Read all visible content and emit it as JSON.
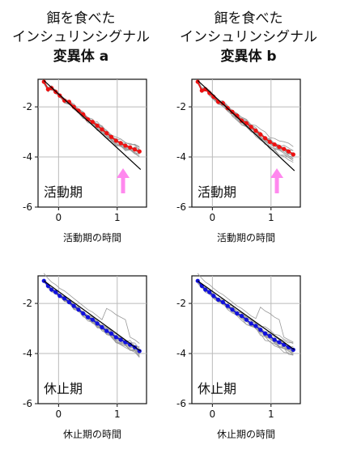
{
  "columns": [
    {
      "title_lines": [
        "餌を食べた",
        "インシュリンシグナル"
      ],
      "title_bold": "変異体 a"
    },
    {
      "title_lines": [
        "餌を食べた",
        "インシュリンシグナル"
      ],
      "title_bold": "変異体 b"
    }
  ],
  "chart_data": [
    {
      "type": "scatter",
      "panel": "top-left",
      "label": "活動期",
      "xlabel": "活動期の時間",
      "xlim": [
        -0.35,
        1.5
      ],
      "ylim": [
        -6,
        -0.9
      ],
      "xticks": [
        "0",
        "1"
      ],
      "yticks": [
        "-2",
        "-4",
        "-6"
      ],
      "grid": true,
      "mean_color": "#ee1111",
      "arrow": {
        "x": 1.1,
        "y_tail": -5.45,
        "y_head": -4.45,
        "color": "#ff88ee"
      },
      "fit": {
        "x": [
          -0.25,
          1.4
        ],
        "y": [
          -0.95,
          -4.5
        ]
      },
      "series": [
        {
          "x": [
            -0.25,
            -0.18,
            -0.12,
            -0.05,
            0.02,
            0.1,
            0.18,
            0.26,
            0.34,
            0.42,
            0.5,
            0.58,
            0.66,
            0.74,
            0.82,
            0.9,
            0.98,
            1.06,
            1.14,
            1.22,
            1.3,
            1.38
          ],
          "y": [
            -1.0,
            -1.3,
            -1.25,
            -1.4,
            -1.55,
            -1.75,
            -1.8,
            -2.0,
            -2.15,
            -2.3,
            -2.5,
            -2.6,
            -2.75,
            -2.9,
            -3.05,
            -3.2,
            -3.35,
            -3.45,
            -3.55,
            -3.62,
            -3.7,
            -3.78
          ]
        }
      ]
    },
    {
      "type": "scatter",
      "panel": "top-right",
      "label": "活動期",
      "xlabel": "活動期の時間",
      "xlim": [
        -0.35,
        1.5
      ],
      "ylim": [
        -6,
        -0.9
      ],
      "xticks": [
        "0",
        "1"
      ],
      "yticks": [
        "-2",
        "-4",
        "-6"
      ],
      "grid": true,
      "mean_color": "#ee1111",
      "arrow": {
        "x": 1.1,
        "y_tail": -5.45,
        "y_head": -4.45,
        "color": "#ff88ee"
      },
      "fit": {
        "x": [
          -0.25,
          1.4
        ],
        "y": [
          -0.95,
          -4.55
        ]
      },
      "series": [
        {
          "x": [
            -0.25,
            -0.18,
            -0.12,
            -0.05,
            0.02,
            0.1,
            0.18,
            0.26,
            0.34,
            0.42,
            0.5,
            0.58,
            0.66,
            0.74,
            0.82,
            0.9,
            0.98,
            1.06,
            1.14,
            1.22,
            1.3,
            1.38
          ],
          "y": [
            -1.0,
            -1.35,
            -1.3,
            -1.45,
            -1.6,
            -1.8,
            -1.85,
            -2.05,
            -2.2,
            -2.35,
            -2.55,
            -2.65,
            -2.8,
            -2.95,
            -3.1,
            -3.25,
            -3.4,
            -3.5,
            -3.6,
            -3.68,
            -3.78,
            -3.9
          ]
        }
      ]
    },
    {
      "type": "scatter",
      "panel": "bottom-left",
      "label": "休止期",
      "xlabel": "休止期の時間",
      "xlim": [
        -0.35,
        1.5
      ],
      "ylim": [
        -6,
        -0.9
      ],
      "xticks": [
        "0",
        "1"
      ],
      "yticks": [
        "-2",
        "-4",
        "-6"
      ],
      "grid": true,
      "mean_color": "#1111dd",
      "fit": {
        "x": [
          -0.25,
          1.4
        ],
        "y": [
          -1.1,
          -3.9
        ]
      },
      "series": [
        {
          "x": [
            -0.25,
            -0.18,
            -0.12,
            -0.05,
            0.02,
            0.1,
            0.18,
            0.26,
            0.34,
            0.42,
            0.5,
            0.58,
            0.66,
            0.74,
            0.82,
            0.9,
            0.98,
            1.06,
            1.14,
            1.22,
            1.3,
            1.38
          ],
          "y": [
            -1.1,
            -1.3,
            -1.45,
            -1.55,
            -1.7,
            -1.8,
            -1.95,
            -2.1,
            -2.25,
            -2.4,
            -2.55,
            -2.65,
            -2.8,
            -2.95,
            -3.1,
            -3.2,
            -3.35,
            -3.45,
            -3.55,
            -3.65,
            -3.75,
            -3.9
          ]
        }
      ]
    },
    {
      "type": "scatter",
      "panel": "bottom-right",
      "label": "休止期",
      "xlabel": "休止期の時間",
      "xlim": [
        -0.35,
        1.5
      ],
      "ylim": [
        -6,
        -0.9
      ],
      "xticks": [
        "0",
        "1"
      ],
      "yticks": [
        "-2",
        "-4",
        "-6"
      ],
      "grid": true,
      "mean_color": "#1111dd",
      "fit": {
        "x": [
          -0.25,
          1.4
        ],
        "y": [
          -1.1,
          -3.85
        ]
      },
      "series": [
        {
          "x": [
            -0.25,
            -0.18,
            -0.12,
            -0.05,
            0.02,
            0.1,
            0.18,
            0.26,
            0.34,
            0.42,
            0.5,
            0.58,
            0.66,
            0.74,
            0.82,
            0.9,
            0.98,
            1.06,
            1.14,
            1.22,
            1.3,
            1.38
          ],
          "y": [
            -1.1,
            -1.3,
            -1.45,
            -1.55,
            -1.7,
            -1.85,
            -1.95,
            -2.1,
            -2.25,
            -2.4,
            -2.5,
            -2.65,
            -2.8,
            -2.9,
            -3.05,
            -3.2,
            -3.3,
            -3.45,
            -3.55,
            -3.65,
            -3.75,
            -3.85
          ]
        }
      ]
    }
  ]
}
